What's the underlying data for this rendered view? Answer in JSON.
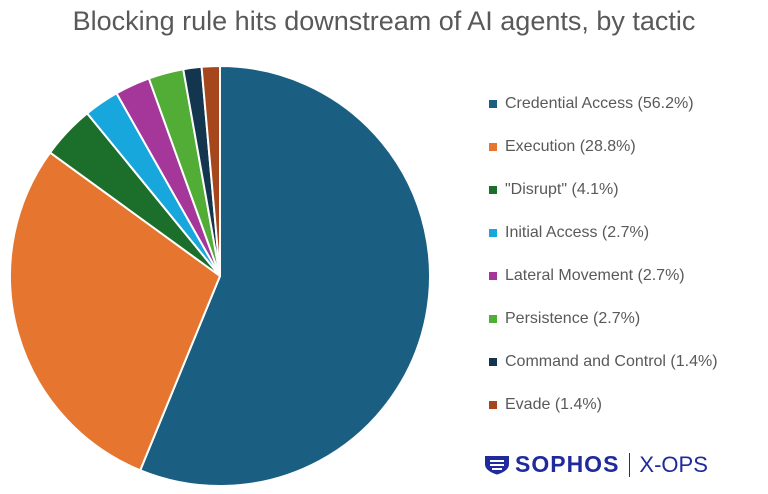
{
  "chart_data": {
    "type": "pie",
    "title": "Blocking rule hits downstream of AI agents, by tactic",
    "start_angle_deg": 0,
    "direction": "clockwise",
    "legend_position": "right",
    "slices": [
      {
        "label": "Credential Access (56.2%)",
        "value": 56.2,
        "color": "#1a5f82"
      },
      {
        "label": "Execution (28.8%)",
        "value": 28.8,
        "color": "#e6752f"
      },
      {
        "label": "\"Disrupt\" (4.1%)",
        "value": 4.1,
        "color": "#1c6e2b"
      },
      {
        "label": "Initial Access (2.7%)",
        "value": 2.7,
        "color": "#18a7dd"
      },
      {
        "label": "Lateral Movement (2.7%)",
        "value": 2.7,
        "color": "#a43799"
      },
      {
        "label": "Persistence (2.7%)",
        "value": 2.7,
        "color": "#51ad36"
      },
      {
        "label": "Command and Control (1.4%)",
        "value": 1.4,
        "color": "#13364e"
      },
      {
        "label": "Evade (1.4%)",
        "value": 1.4,
        "color": "#a5461c"
      }
    ]
  },
  "branding": {
    "logo": "SOPHOS",
    "separator": "|",
    "sub": "X-OPS",
    "color": "#1f2a9c",
    "icon": "sophos-shield-icon"
  }
}
